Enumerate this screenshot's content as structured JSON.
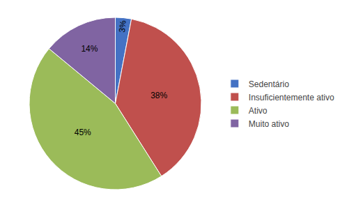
{
  "chart_data": {
    "type": "pie",
    "categories": [
      "Sedentário",
      "Insuficientemente ativo",
      "Ativo",
      "Muito ativo"
    ],
    "values": [
      3,
      38,
      45,
      14
    ],
    "value_labels": [
      "3%",
      "38%",
      "45%",
      "14%"
    ],
    "colors": [
      "#4472C4",
      "#C0504D",
      "#9BBB59",
      "#8064A2"
    ],
    "data_labels": true,
    "legend": "right"
  }
}
